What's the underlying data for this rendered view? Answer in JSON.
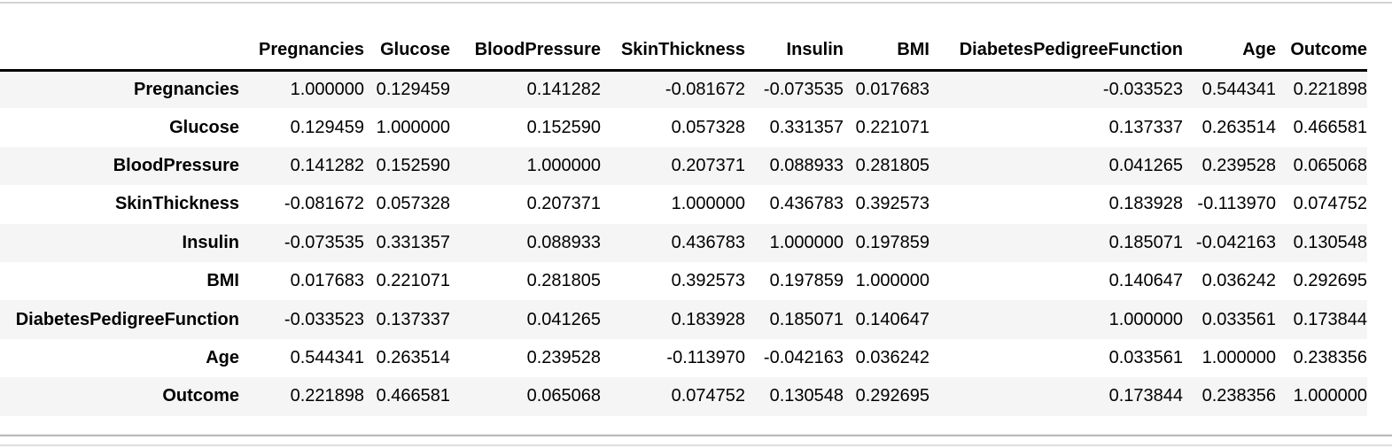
{
  "table": {
    "type": "table",
    "description": "correlation-matrix",
    "columns": [
      "Pregnancies",
      "Glucose",
      "BloodPressure",
      "SkinThickness",
      "Insulin",
      "BMI",
      "DiabetesPedigreeFunction",
      "Age",
      "Outcome"
    ],
    "rows": [
      {
        "label": "Pregnancies",
        "values": [
          "1.000000",
          "0.129459",
          "0.141282",
          "-0.081672",
          "-0.073535",
          "0.017683",
          "-0.033523",
          "0.544341",
          "0.221898"
        ]
      },
      {
        "label": "Glucose",
        "values": [
          "0.129459",
          "1.000000",
          "0.152590",
          "0.057328",
          "0.331357",
          "0.221071",
          "0.137337",
          "0.263514",
          "0.466581"
        ]
      },
      {
        "label": "BloodPressure",
        "values": [
          "0.141282",
          "0.152590",
          "1.000000",
          "0.207371",
          "0.088933",
          "0.281805",
          "0.041265",
          "0.239528",
          "0.065068"
        ]
      },
      {
        "label": "SkinThickness",
        "values": [
          "-0.081672",
          "0.057328",
          "0.207371",
          "1.000000",
          "0.436783",
          "0.392573",
          "0.183928",
          "-0.113970",
          "0.074752"
        ]
      },
      {
        "label": "Insulin",
        "values": [
          "-0.073535",
          "0.331357",
          "0.088933",
          "0.436783",
          "1.000000",
          "0.197859",
          "0.185071",
          "-0.042163",
          "0.130548"
        ]
      },
      {
        "label": "BMI",
        "values": [
          "0.017683",
          "0.221071",
          "0.281805",
          "0.392573",
          "0.197859",
          "1.000000",
          "0.140647",
          "0.036242",
          "0.292695"
        ]
      },
      {
        "label": "DiabetesPedigreeFunction",
        "values": [
          "-0.033523",
          "0.137337",
          "0.041265",
          "0.183928",
          "0.185071",
          "0.140647",
          "1.000000",
          "0.033561",
          "0.173844"
        ]
      },
      {
        "label": "Age",
        "values": [
          "0.544341",
          "0.263514",
          "0.239528",
          "-0.113970",
          "-0.042163",
          "0.036242",
          "0.033561",
          "1.000000",
          "0.238356"
        ]
      },
      {
        "label": "Outcome",
        "values": [
          "0.221898",
          "0.466581",
          "0.065068",
          "0.074752",
          "0.130548",
          "0.292695",
          "0.173844",
          "0.238356",
          "1.000000"
        ]
      }
    ],
    "corner_label": ""
  },
  "colors": {
    "row_stripe": "#f5f5f5",
    "header_rule": "#000000",
    "page_rule_top": "#d4d4d4",
    "page_rule_bottom": "#bdbdbd",
    "text": "#000000",
    "background": "#ffffff"
  }
}
